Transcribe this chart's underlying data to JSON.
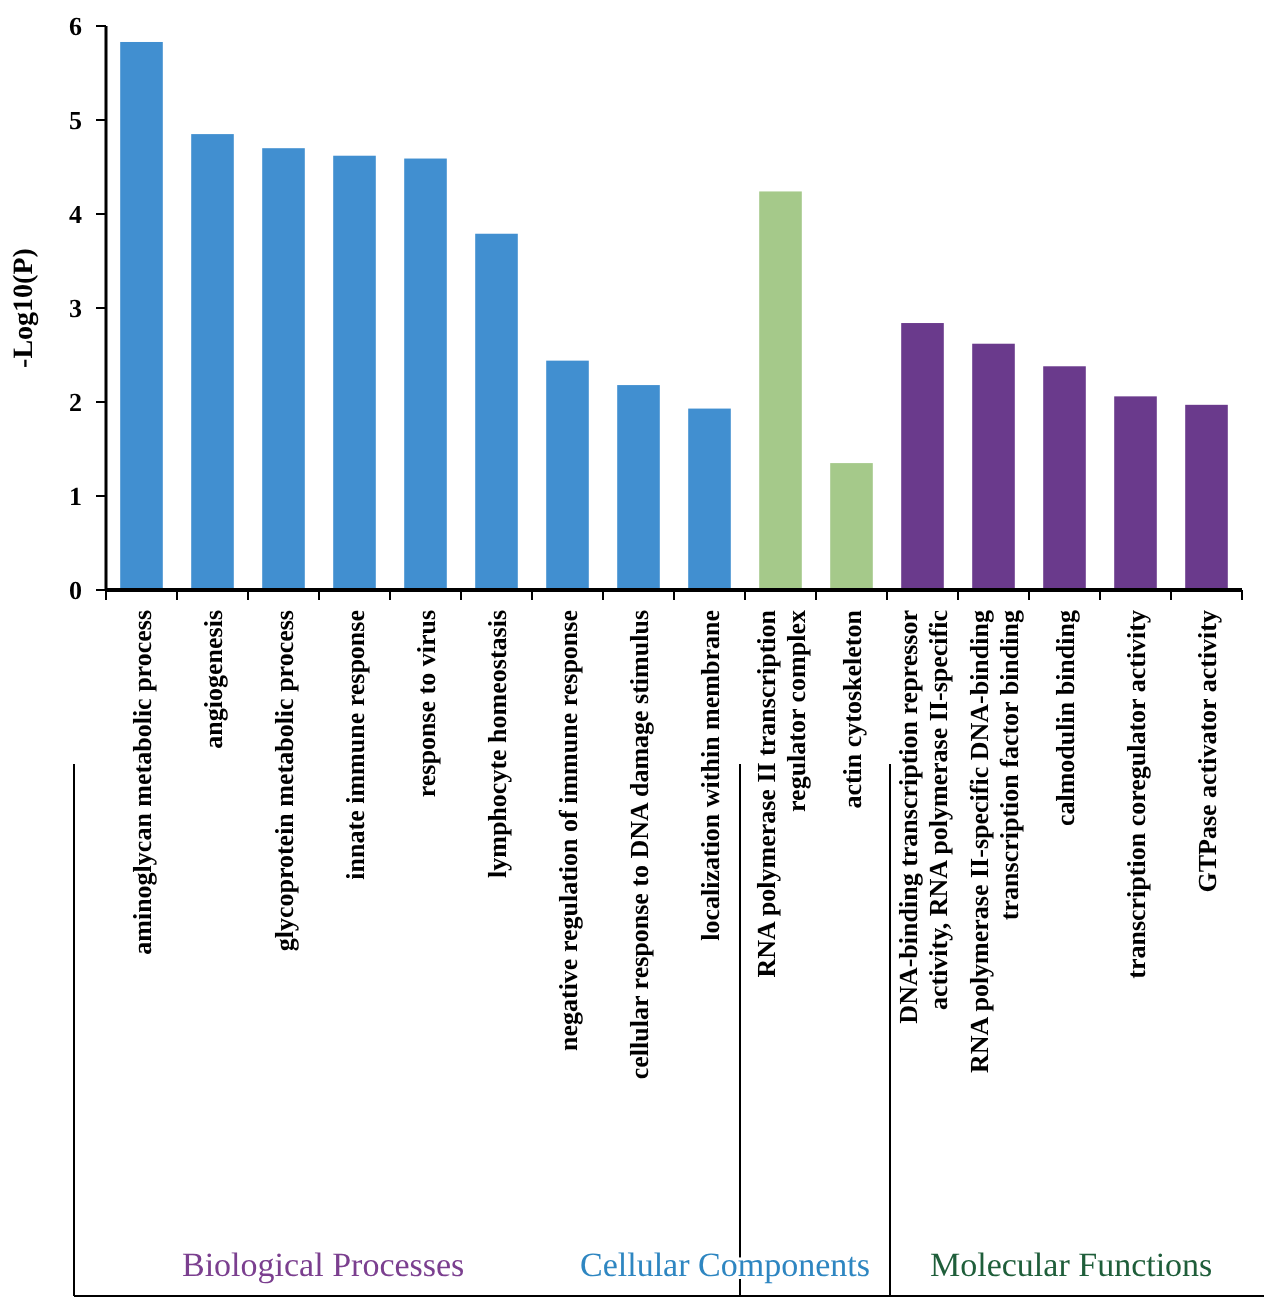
{
  "chart_data": {
    "type": "bar",
    "ylabel": "-Log10(P)",
    "categories": [
      "aminoglycan metabolic process",
      "angiogenesis",
      "glycoprotein metabolic process",
      "innate immune response",
      "response to virus",
      "lymphocyte homeostasis",
      "negative regulation of immune response",
      "cellular response to DNA damage stimulus",
      "localization within membrane",
      "RNA polymerase II transcription regulator complex",
      "actin cytoskeleton",
      "DNA-binding transcription repressor activity, RNA polymerase II-specific",
      "RNA polymerase II-specific DNA-binding transcription factor binding",
      "calmodulin binding",
      "transcription coregulator activity",
      "GTPase activator activity"
    ],
    "values": [
      5.83,
      4.85,
      4.7,
      4.62,
      4.59,
      3.79,
      2.44,
      2.18,
      1.93,
      4.24,
      1.35,
      2.84,
      2.62,
      2.38,
      2.06,
      1.97
    ],
    "colors": [
      "#418fd0",
      "#418fd0",
      "#418fd0",
      "#418fd0",
      "#418fd0",
      "#418fd0",
      "#418fd0",
      "#418fd0",
      "#418fd0",
      "#a5c98a",
      "#a5c98a",
      "#6a3a8c",
      "#6a3a8c",
      "#6a3a8c",
      "#6a3a8c",
      "#6a3a8c"
    ],
    "ylim": [
      0,
      6
    ],
    "yticks": [
      0,
      1,
      2,
      3,
      4,
      5,
      6
    ],
    "grid": false,
    "annotations": [
      "Biological Processes",
      "Cellular Components",
      "Molecular Functions"
    ]
  }
}
